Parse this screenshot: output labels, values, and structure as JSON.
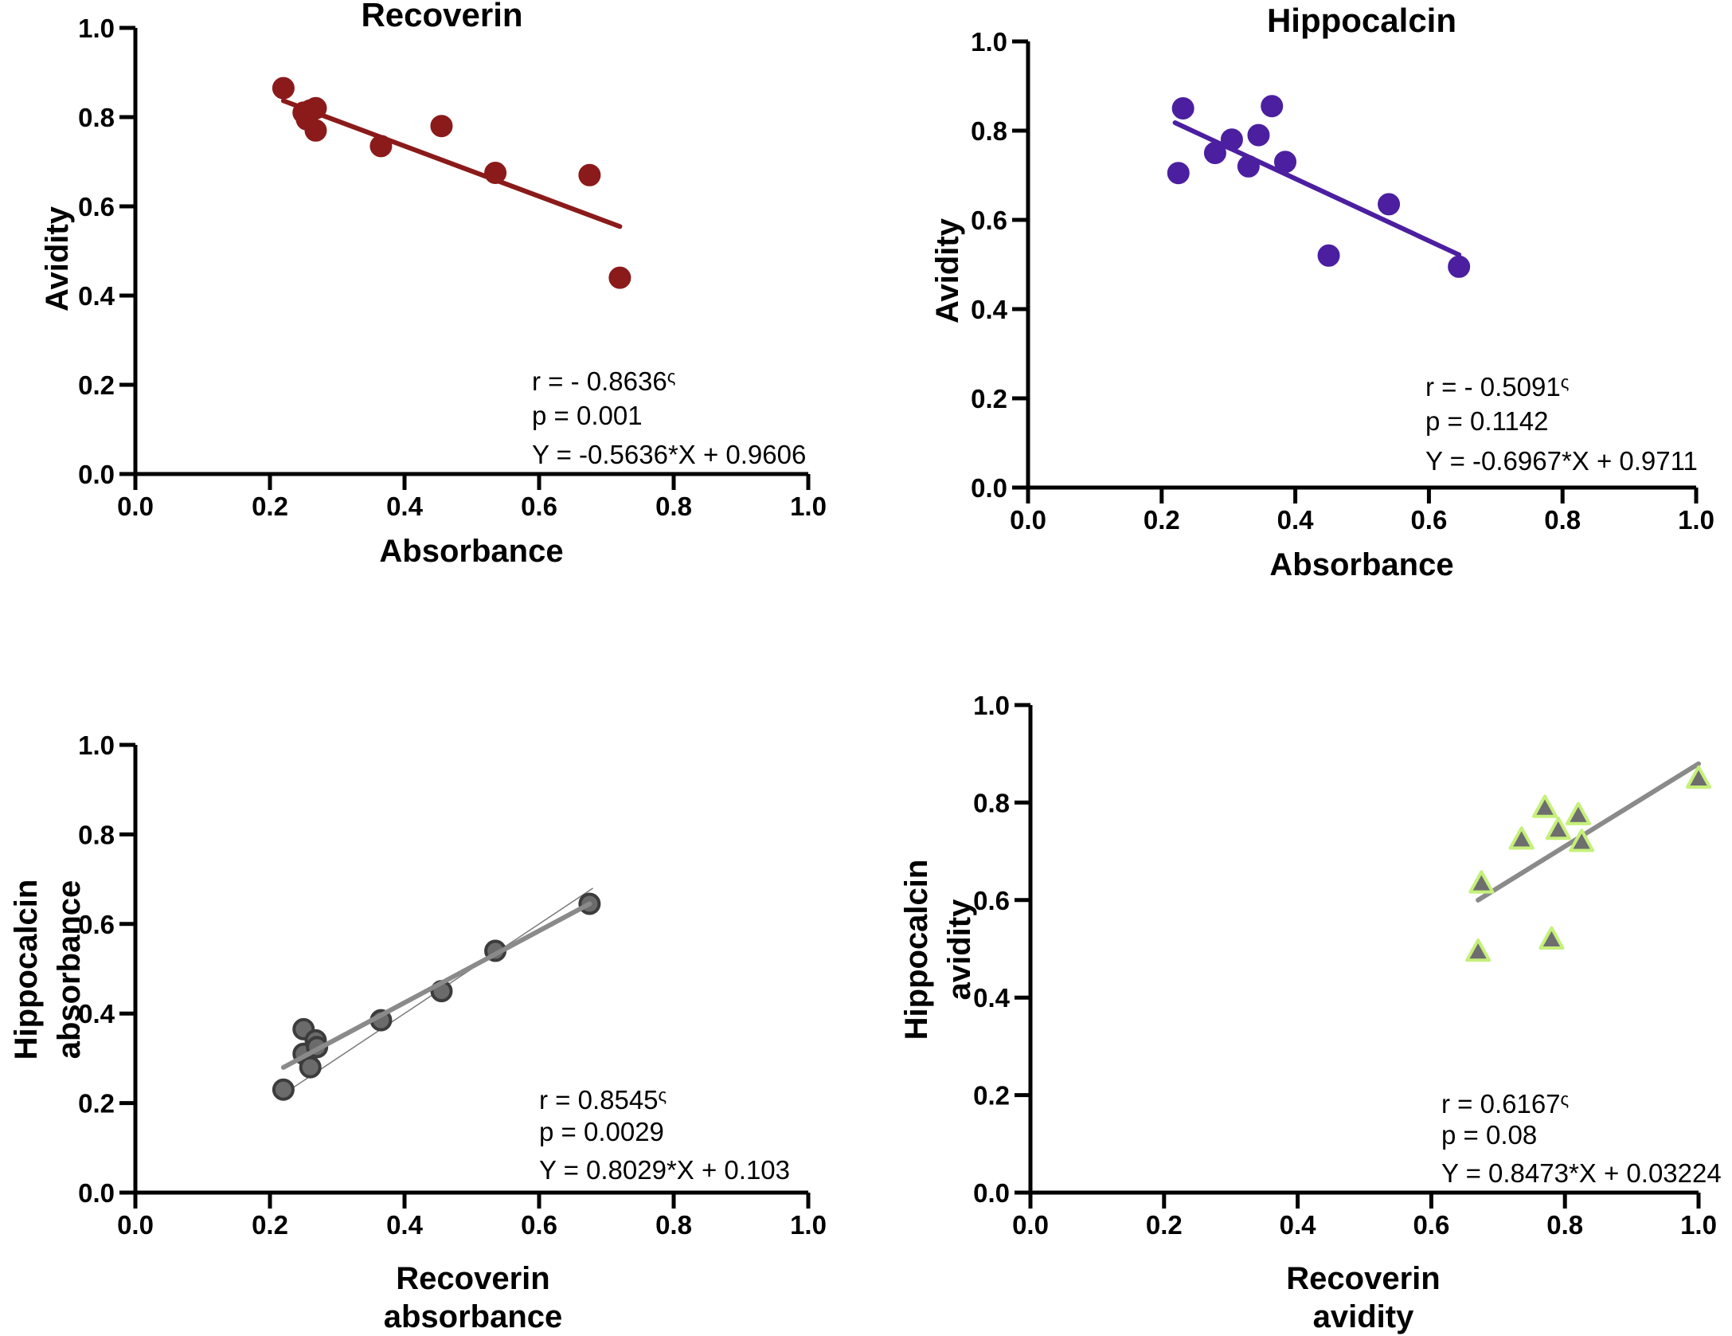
{
  "chart_data": [
    {
      "type": "scatter",
      "title": "Recoverin",
      "xlabel": [
        "Absorbance"
      ],
      "ylabel": [
        "Avidity"
      ],
      "xlim": [
        0,
        1
      ],
      "ylim": [
        0,
        1
      ],
      "xticks": [
        "0.0",
        "0.2",
        "0.4",
        "0.6",
        "0.8",
        "1.0"
      ],
      "yticks": [
        "0.0",
        "0.2",
        "0.4",
        "0.6",
        "0.8",
        "1.0"
      ],
      "marker": "circle",
      "colors": {
        "point": "#8b1a1a",
        "stroke": "#8b1a1a",
        "line": "#8b1a1a"
      },
      "points": [
        [
          0.22,
          0.865
        ],
        [
          0.25,
          0.81
        ],
        [
          0.255,
          0.795
        ],
        [
          0.26,
          0.815
        ],
        [
          0.268,
          0.82
        ],
        [
          0.268,
          0.77
        ],
        [
          0.365,
          0.735
        ],
        [
          0.455,
          0.78
        ],
        [
          0.535,
          0.675
        ],
        [
          0.675,
          0.67
        ],
        [
          0.72,
          0.44
        ]
      ],
      "fit": {
        "slope": -0.5636,
        "intercept": 0.9606,
        "x_range": [
          0.22,
          0.72
        ]
      },
      "annotations": {
        "r": "r = - 0.8636",
        "r_mark": "ς",
        "p": "p = 0.001",
        "eq": "Y = -0.5636*X + 0.9606"
      }
    },
    {
      "type": "scatter",
      "title": "Hippocalcin",
      "xlabel": [
        "Absorbance"
      ],
      "ylabel": [
        "Avidity"
      ],
      "xlim": [
        0,
        1
      ],
      "ylim": [
        0,
        1
      ],
      "xticks": [
        "0.0",
        "0.2",
        "0.4",
        "0.6",
        "0.8",
        "1.0"
      ],
      "yticks": [
        "0.0",
        "0.2",
        "0.4",
        "0.6",
        "0.8",
        "1.0"
      ],
      "marker": "circle",
      "colors": {
        "point": "#4b1fa0",
        "stroke": "#4b1fa0",
        "line": "#4b1fa0"
      },
      "points": [
        [
          0.225,
          0.705
        ],
        [
          0.232,
          0.85
        ],
        [
          0.28,
          0.75
        ],
        [
          0.305,
          0.78
        ],
        [
          0.33,
          0.72
        ],
        [
          0.345,
          0.79
        ],
        [
          0.365,
          0.855
        ],
        [
          0.385,
          0.73
        ],
        [
          0.45,
          0.52
        ],
        [
          0.54,
          0.635
        ],
        [
          0.645,
          0.495
        ]
      ],
      "fit": {
        "slope": -0.6967,
        "intercept": 0.9711,
        "x_range": [
          0.22,
          0.645
        ]
      },
      "annotations": {
        "r": "r = - 0.5091",
        "r_mark": "ς",
        "p": "p = 0.1142",
        "eq": "Y = -0.6967*X + 0.9711"
      }
    },
    {
      "type": "scatter",
      "title": "",
      "xlabel": [
        "Recoverin",
        "absorbance"
      ],
      "ylabel": [
        "Hippocalcin",
        "absorbance"
      ],
      "xlim": [
        0,
        1
      ],
      "ylim": [
        0,
        1
      ],
      "xticks": [
        "0.0",
        "0.2",
        "0.4",
        "0.6",
        "0.8",
        "1.0"
      ],
      "yticks": [
        "0.0",
        "0.2",
        "0.4",
        "0.6",
        "0.8",
        "1.0"
      ],
      "marker": "circle",
      "colors": {
        "point": "#6b6b6b",
        "stroke": "#3c3c3c",
        "line": "#8a8a8a",
        "identity": "#7a7a7a"
      },
      "points": [
        [
          0.22,
          0.23
        ],
        [
          0.25,
          0.365
        ],
        [
          0.25,
          0.31
        ],
        [
          0.26,
          0.28
        ],
        [
          0.268,
          0.34
        ],
        [
          0.27,
          0.325
        ],
        [
          0.365,
          0.385
        ],
        [
          0.455,
          0.45
        ],
        [
          0.535,
          0.54
        ],
        [
          0.675,
          0.645
        ]
      ],
      "fit": {
        "slope": 0.8029,
        "intercept": 0.103,
        "x_range": [
          0.22,
          0.675
        ]
      },
      "identity_line": {
        "x_range": [
          0.22,
          0.68
        ]
      },
      "annotations": {
        "r": "r = 0.8545",
        "r_mark": "ς",
        "p": "p = 0.0029",
        "eq": "Y = 0.8029*X + 0.103"
      }
    },
    {
      "type": "scatter",
      "title": "",
      "xlabel": [
        "Recoverin",
        "avidity"
      ],
      "ylabel": [
        "Hippocalcin",
        "avidity"
      ],
      "xlim": [
        0,
        1
      ],
      "ylim": [
        0,
        1
      ],
      "xticks": [
        "0.0",
        "0.2",
        "0.4",
        "0.6",
        "0.8",
        "1.0"
      ],
      "yticks": [
        "0.0",
        "0.2",
        "0.4",
        "0.6",
        "0.8",
        "1.0"
      ],
      "marker": "triangle",
      "colors": {
        "point": "#6e6e6e",
        "stroke": "#c5f07a",
        "line": "#8a8a8a"
      },
      "points": [
        [
          0.67,
          0.495
        ],
        [
          0.675,
          0.635
        ],
        [
          0.735,
          0.725
        ],
        [
          0.77,
          0.79
        ],
        [
          0.78,
          0.52
        ],
        [
          0.79,
          0.745
        ],
        [
          0.82,
          0.775
        ],
        [
          0.825,
          0.72
        ],
        [
          1.0,
          0.85
        ]
      ],
      "fit": {
        "slope": 0.8473,
        "intercept": 0.03224,
        "x_range": [
          0.67,
          1.0
        ]
      },
      "annotations": {
        "r": "r = 0.6167",
        "r_mark": "ς",
        "p": "p = 0.08",
        "eq": "Y = 0.8473*X + 0.03224"
      }
    }
  ]
}
